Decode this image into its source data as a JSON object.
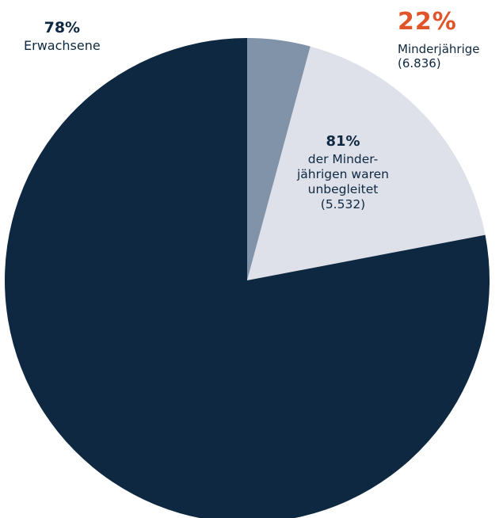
{
  "colors": {
    "adults": "#0d2840",
    "minors_unaccompanied": "#dfe1ea",
    "minors_accompanied": "#8193a8",
    "accent_orange": "#e0542a",
    "text_dark": "#0d2840"
  },
  "chart_data": {
    "type": "pie",
    "slices": [
      {
        "key": "minors_accompanied",
        "value": 4.2
      },
      {
        "key": "minors_unaccompanied",
        "value": 17.8
      },
      {
        "key": "adults",
        "value": 78
      }
    ],
    "labels": {
      "adults": {
        "pct": "78%",
        "text": "Erwachsene"
      },
      "minors": {
        "pct": "22%",
        "text": "Minderjährige",
        "count": "(6.836)"
      },
      "unaccompanied": {
        "pct": "81%",
        "lines": [
          "der Minder-",
          "jährigen waren",
          "unbegleitet",
          "(5.532)"
        ]
      }
    }
  }
}
